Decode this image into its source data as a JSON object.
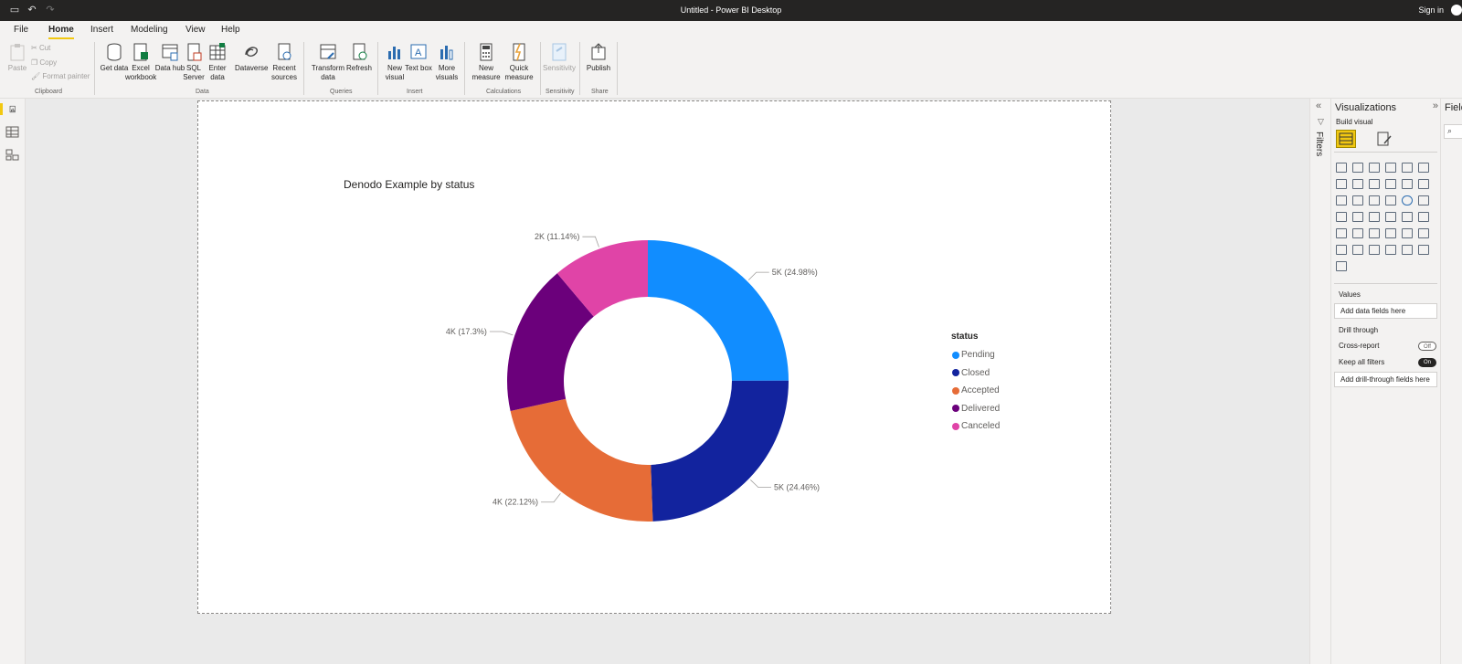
{
  "window": {
    "title": "Untitled - Power BI Desktop",
    "sign_in": "Sign in"
  },
  "menu": {
    "tabs": [
      "File",
      "Home",
      "Insert",
      "Modeling",
      "View",
      "Help"
    ],
    "active": "Home"
  },
  "ribbon": {
    "clipboard": {
      "paste": "Paste",
      "cut": "Cut",
      "copy": "Copy",
      "format_painter": "Format painter",
      "label": "Clipboard"
    },
    "data": {
      "buttons": [
        "Get data",
        "Excel workbook",
        "Data hub",
        "SQL Server",
        "Enter data",
        "Dataverse",
        "Recent sources"
      ],
      "label": "Data"
    },
    "queries": {
      "buttons": [
        "Transform data",
        "Refresh"
      ],
      "label": "Queries"
    },
    "insert": {
      "buttons": [
        "New visual",
        "Text box",
        "More visuals"
      ],
      "label": "Insert"
    },
    "calculations": {
      "buttons": [
        "New measure",
        "Quick measure"
      ],
      "label": "Calculations"
    },
    "sensitivity": {
      "buttons": [
        "Sensitivity"
      ],
      "label": "Sensitivity"
    },
    "share": {
      "buttons": [
        "Publish"
      ],
      "label": "Share"
    }
  },
  "filters": {
    "label": "Filters"
  },
  "visualizations": {
    "title": "Visualizations",
    "build_visual": "Build visual",
    "values_label": "Values",
    "values_placeholder": "Add data fields here",
    "drill_through_label": "Drill through",
    "cross_report": "Cross-report",
    "cross_report_state": "Off",
    "keep_all_filters": "Keep all filters",
    "keep_all_filters_state": "On",
    "drill_placeholder": "Add drill-through fields here"
  },
  "fields": {
    "title": "Fields"
  },
  "chart_data": {
    "type": "pie",
    "variant": "donut",
    "title": "Denodo Example by status",
    "legend_title": "status",
    "legend_position": "right",
    "categories": [
      "Pending",
      "Closed",
      "Accepted",
      "Delivered",
      "Canceled"
    ],
    "values": [
      5000,
      5000,
      4000,
      4000,
      2000
    ],
    "percentages": [
      24.98,
      24.46,
      22.12,
      17.3,
      11.14
    ],
    "data_labels": [
      "5K (24.98%)",
      "5K (24.46%)",
      "4K (22.12%)",
      "4K (17.3%)",
      "2K (11.14%)"
    ],
    "colors": [
      "#118DFF",
      "#12239E",
      "#E66C37",
      "#6B007B",
      "#E044A7"
    ]
  }
}
